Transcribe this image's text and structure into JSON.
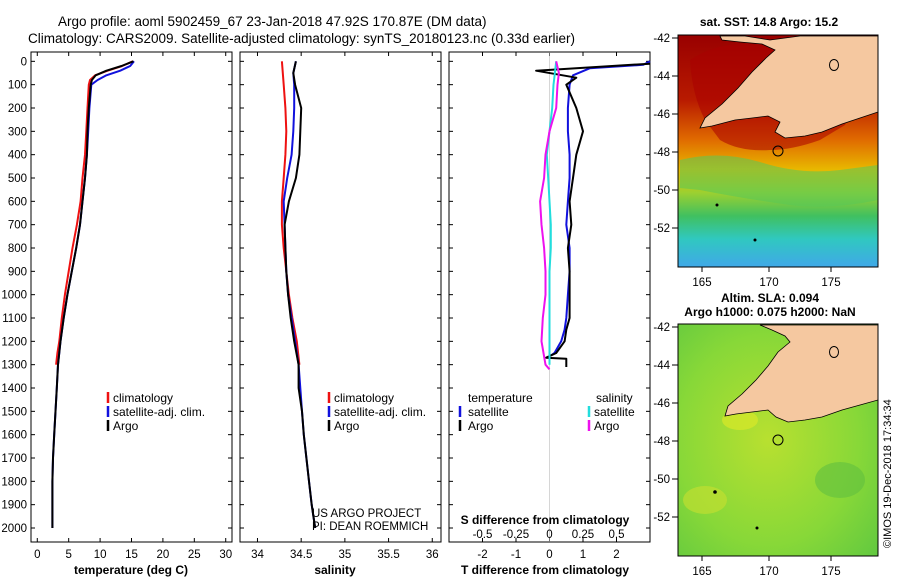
{
  "header": {
    "line1": "Argo profile: aoml 5902459_67 23-Jan-2018 47.92S 170.87E (DM data)",
    "line2": "Climatology: CARS2009. Satellite-adjusted climatology: synTS_20180123.nc (0.33d earlier)"
  },
  "colors": {
    "climatology": "#ee1111",
    "satellite": "#1111dd",
    "argo": "#000000",
    "sat_salinity": "#22dddd",
    "clim_salinity": "#ee11ee"
  },
  "depth_axis": {
    "ticks": [
      0,
      100,
      200,
      300,
      400,
      500,
      600,
      700,
      800,
      900,
      1000,
      1100,
      1200,
      1300,
      1400,
      1500,
      1600,
      1700,
      1800,
      1900,
      2000
    ],
    "tick_labels": [
      "0",
      "100",
      "200",
      "300",
      "400",
      "500",
      "600",
      "700",
      "800",
      "900",
      "1000",
      "1100",
      "1200",
      "1300",
      "1400",
      "1500",
      "1600",
      "1700",
      "1800",
      "1900",
      "2000"
    ],
    "range": [
      -40,
      2060
    ]
  },
  "chart_data": [
    {
      "type": "line",
      "panel": "temperature",
      "xlabel": "temperature (deg C)",
      "xlim": [
        -1,
        31
      ],
      "xticks": [
        0,
        5,
        10,
        15,
        20,
        25,
        30
      ],
      "xtick_labels": [
        "0",
        "5",
        "10",
        "15",
        "20",
        "25",
        "30"
      ],
      "ylim_depth": [
        -40,
        2060
      ],
      "legend": [
        "climatology",
        "satellite-adj. clim.",
        "Argo"
      ],
      "series": [
        {
          "name": "climatology",
          "color_key": "climatology",
          "x": [
            15.2,
            13.5,
            11.2,
            9.2,
            8.4,
            8.2,
            8.0,
            7.8,
            7.6,
            7.2,
            6.9,
            6.3,
            5.6,
            5.0,
            4.4,
            3.9,
            3.5,
            3.2,
            3.0
          ],
          "y": [
            0,
            20,
            40,
            60,
            80,
            100,
            200,
            300,
            400,
            500,
            600,
            700,
            800,
            900,
            1000,
            1100,
            1200,
            1250,
            1300
          ]
        },
        {
          "name": "satellite-adj. clim.",
          "color_key": "satellite",
          "x": [
            15.4,
            14.8,
            13.2,
            11.0,
            9.6,
            8.6,
            8.3,
            8.1,
            7.9,
            7.6,
            7.2,
            6.8,
            6.2,
            5.5,
            4.8,
            4.2,
            3.7,
            3.3,
            3.1,
            2.9,
            2.7,
            2.5,
            2.4,
            2.4
          ],
          "y": [
            0,
            20,
            40,
            60,
            80,
            100,
            200,
            300,
            400,
            500,
            600,
            700,
            800,
            900,
            1000,
            1100,
            1200,
            1300,
            1400,
            1500,
            1600,
            1700,
            1800,
            2000
          ]
        },
        {
          "name": "Argo",
          "color_key": "argo",
          "x": [
            15.3,
            13.4,
            11.0,
            9.3,
            8.7,
            8.5,
            8.2,
            8.0,
            7.9,
            7.6,
            7.2,
            6.8,
            6.2,
            5.5,
            4.8,
            4.2,
            3.7,
            3.3,
            3.1,
            2.9,
            2.7,
            2.5,
            2.4,
            2.4
          ],
          "y": [
            0,
            20,
            40,
            60,
            80,
            100,
            200,
            300,
            400,
            500,
            600,
            700,
            800,
            900,
            1000,
            1100,
            1200,
            1300,
            1400,
            1500,
            1600,
            1700,
            1800,
            2000
          ]
        }
      ]
    },
    {
      "type": "line",
      "panel": "salinity",
      "xlabel": "salinity",
      "xlim": [
        33.8,
        36.1
      ],
      "xticks": [
        34,
        34.5,
        35,
        35.5,
        36
      ],
      "xtick_labels": [
        "34",
        "34.5",
        "35",
        "35.5",
        "36"
      ],
      "ylim_depth": [
        -40,
        2060
      ],
      "legend": [
        "climatology",
        "satellite-adj. clim.",
        "Argo"
      ],
      "series": [
        {
          "name": "climatology",
          "color_key": "climatology",
          "x": [
            34.28,
            34.29,
            34.3,
            34.32,
            34.33,
            34.32,
            34.3,
            34.28,
            34.28,
            34.3,
            34.33,
            34.36,
            34.4,
            34.45,
            34.48
          ],
          "y": [
            0,
            50,
            100,
            200,
            300,
            400,
            500,
            600,
            700,
            800,
            900,
            1000,
            1100,
            1200,
            1300
          ]
        },
        {
          "name": "satellite-adj. clim.",
          "color_key": "satellite",
          "x": [
            34.44,
            34.41,
            34.42,
            34.42,
            34.41,
            34.39,
            34.34,
            34.3,
            34.31,
            34.32,
            34.33,
            34.35,
            34.39,
            34.43,
            34.47,
            34.49,
            34.51,
            34.53,
            34.56,
            34.59,
            34.62,
            34.64,
            34.66
          ],
          "y": [
            0,
            50,
            100,
            200,
            300,
            400,
            500,
            600,
            700,
            800,
            900,
            1000,
            1100,
            1200,
            1300,
            1400,
            1500,
            1600,
            1700,
            1800,
            1900,
            1950,
            2000
          ]
        },
        {
          "name": "Argo",
          "color_key": "argo",
          "x": [
            34.44,
            34.41,
            34.43,
            34.5,
            34.49,
            34.48,
            34.44,
            34.36,
            34.31,
            34.32,
            34.33,
            34.35,
            34.38,
            34.42,
            34.47,
            34.47,
            34.47,
            34.51,
            34.53,
            34.56,
            34.59,
            34.62,
            34.64,
            34.66
          ],
          "y": [
            0,
            50,
            100,
            200,
            300,
            400,
            500,
            600,
            700,
            800,
            900,
            1000,
            1100,
            1200,
            1300,
            1320,
            1400,
            1500,
            1600,
            1700,
            1800,
            1900,
            1950,
            2000
          ]
        }
      ]
    },
    {
      "type": "line",
      "panel": "difference",
      "xlabel": "T difference from climatology",
      "xlabel2": "S difference from climatology",
      "xlim": [
        -3,
        3
      ],
      "xticks": [
        -2,
        -1,
        0,
        1,
        2
      ],
      "xtick_labels": [
        "-2",
        "-1",
        "0",
        "1",
        "2"
      ],
      "x2ticks": [
        -0.5,
        -0.25,
        0,
        0.25,
        0.5
      ],
      "x2tick_labels": [
        "-0.5",
        "-0.25",
        "0",
        "0.25",
        "0.5"
      ],
      "ylim_depth": [
        -40,
        2060
      ],
      "legend_left_title": "temperature",
      "legend_right_title": "salinity",
      "legend_left": [
        "satellite",
        "Argo"
      ],
      "legend_right": [
        "satellite",
        "Argo"
      ],
      "series": [
        {
          "name": "T satellite",
          "color_key": "satellite",
          "x": [
            3.0,
            2.8,
            1.2,
            0.7,
            0.6,
            0.55,
            0.55,
            0.6,
            0.6,
            0.55,
            0.5,
            0.6,
            0.6,
            0.55,
            0.5,
            0.45,
            0.35,
            0.15,
            0.05
          ],
          "y": [
            0,
            15,
            30,
            60,
            100,
            200,
            300,
            400,
            500,
            600,
            700,
            800,
            900,
            1000,
            1100,
            1150,
            1200,
            1250,
            1260
          ]
        },
        {
          "name": "T Argo",
          "color_key": "argo",
          "x": [
            3.0,
            -0.4,
            0.8,
            0.5,
            0.8,
            1.0,
            0.8,
            0.7,
            0.6,
            0.65,
            0.55,
            0.6,
            0.6,
            0.6,
            0.5,
            0.45,
            0.2,
            -0.1,
            0.5,
            0.5
          ],
          "y": [
            10,
            40,
            70,
            100,
            200,
            300,
            400,
            500,
            600,
            700,
            800,
            900,
            1000,
            1100,
            1150,
            1200,
            1250,
            1270,
            1275,
            1310
          ]
        },
        {
          "name": "S satellite",
          "color_key": "sat_salinity",
          "x": [
            0.05,
            0.04,
            0.03,
            0.02,
            0.0,
            -0.02,
            -0.01,
            0.0,
            0.01,
            0.01,
            0.0,
            0.0,
            0.0,
            0.0,
            0.0
          ],
          "y": [
            0,
            50,
            100,
            200,
            300,
            400,
            500,
            600,
            700,
            800,
            900,
            1000,
            1100,
            1200,
            1300
          ]
        },
        {
          "name": "S Argo",
          "color_key": "clim_salinity",
          "x": [
            0.05,
            0.07,
            0.06,
            0.05,
            0.0,
            -0.03,
            -0.04,
            -0.07,
            -0.06,
            -0.04,
            -0.03,
            -0.03,
            -0.05,
            -0.06,
            -0.03,
            0.0
          ],
          "y": [
            0,
            50,
            100,
            200,
            300,
            400,
            500,
            600,
            700,
            800,
            900,
            1000,
            1100,
            1200,
            1300,
            1320
          ]
        }
      ]
    }
  ],
  "credits": {
    "line1": "US ARGO PROJECT",
    "line2": "PI: DEAN ROEMMICH"
  },
  "maps": {
    "sst": {
      "title": "sat. SST: 14.8 Argo: 15.2",
      "lat_ticks": [
        "-42",
        "-44",
        "-46",
        "-48",
        "-50",
        "-52"
      ],
      "lon_ticks": [
        "165",
        "170",
        "175"
      ]
    },
    "sla": {
      "title1": "Altim. SLA: 0.094",
      "title2": "Argo h1000: 0.075 h2000: NaN",
      "lat_ticks": [
        "-42",
        "-44",
        "-46",
        "-48",
        "-50",
        "-52"
      ],
      "lon_ticks": [
        "165",
        "170",
        "175"
      ]
    }
  },
  "imos_stamp": "©IMOS 19-Dec-2018 17:34:34"
}
